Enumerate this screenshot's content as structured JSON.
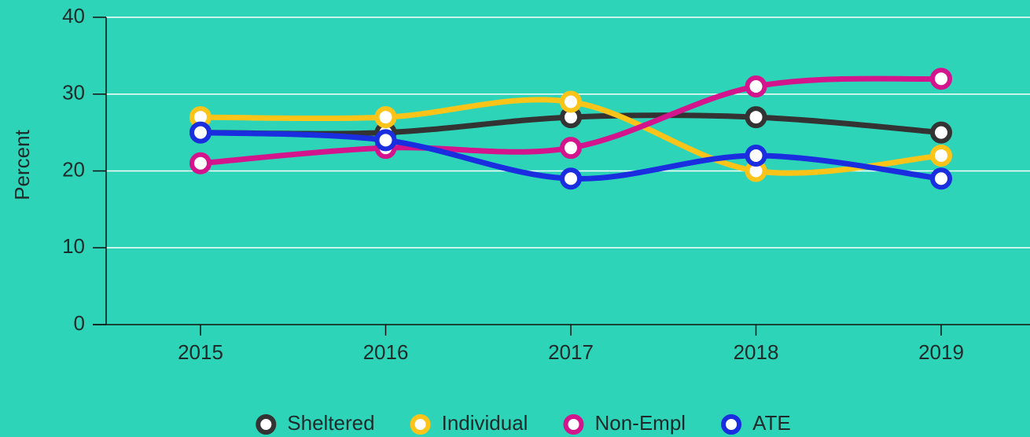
{
  "chart_data": {
    "type": "line",
    "y_label": "Percent",
    "categories": [
      "2015",
      "2016",
      "2017",
      "2018",
      "2019"
    ],
    "series": [
      {
        "name": "Sheltered",
        "color": "#333333",
        "values": [
          25,
          25,
          27,
          27,
          25
        ]
      },
      {
        "name": "Individual",
        "color": "#fcc419",
        "values": [
          27,
          27,
          29,
          20,
          22
        ]
      },
      {
        "name": "Non-Empl",
        "color": "#d4148c",
        "values": [
          21,
          23,
          23,
          31,
          32
        ]
      },
      {
        "name": "ATE",
        "color": "#1a2ee0",
        "values": [
          25,
          24,
          19,
          22,
          19
        ]
      }
    ],
    "ylim": [
      0,
      40
    ],
    "yticks": [
      0,
      10,
      20,
      30,
      40
    ],
    "grid": true,
    "legend": "bottom"
  }
}
